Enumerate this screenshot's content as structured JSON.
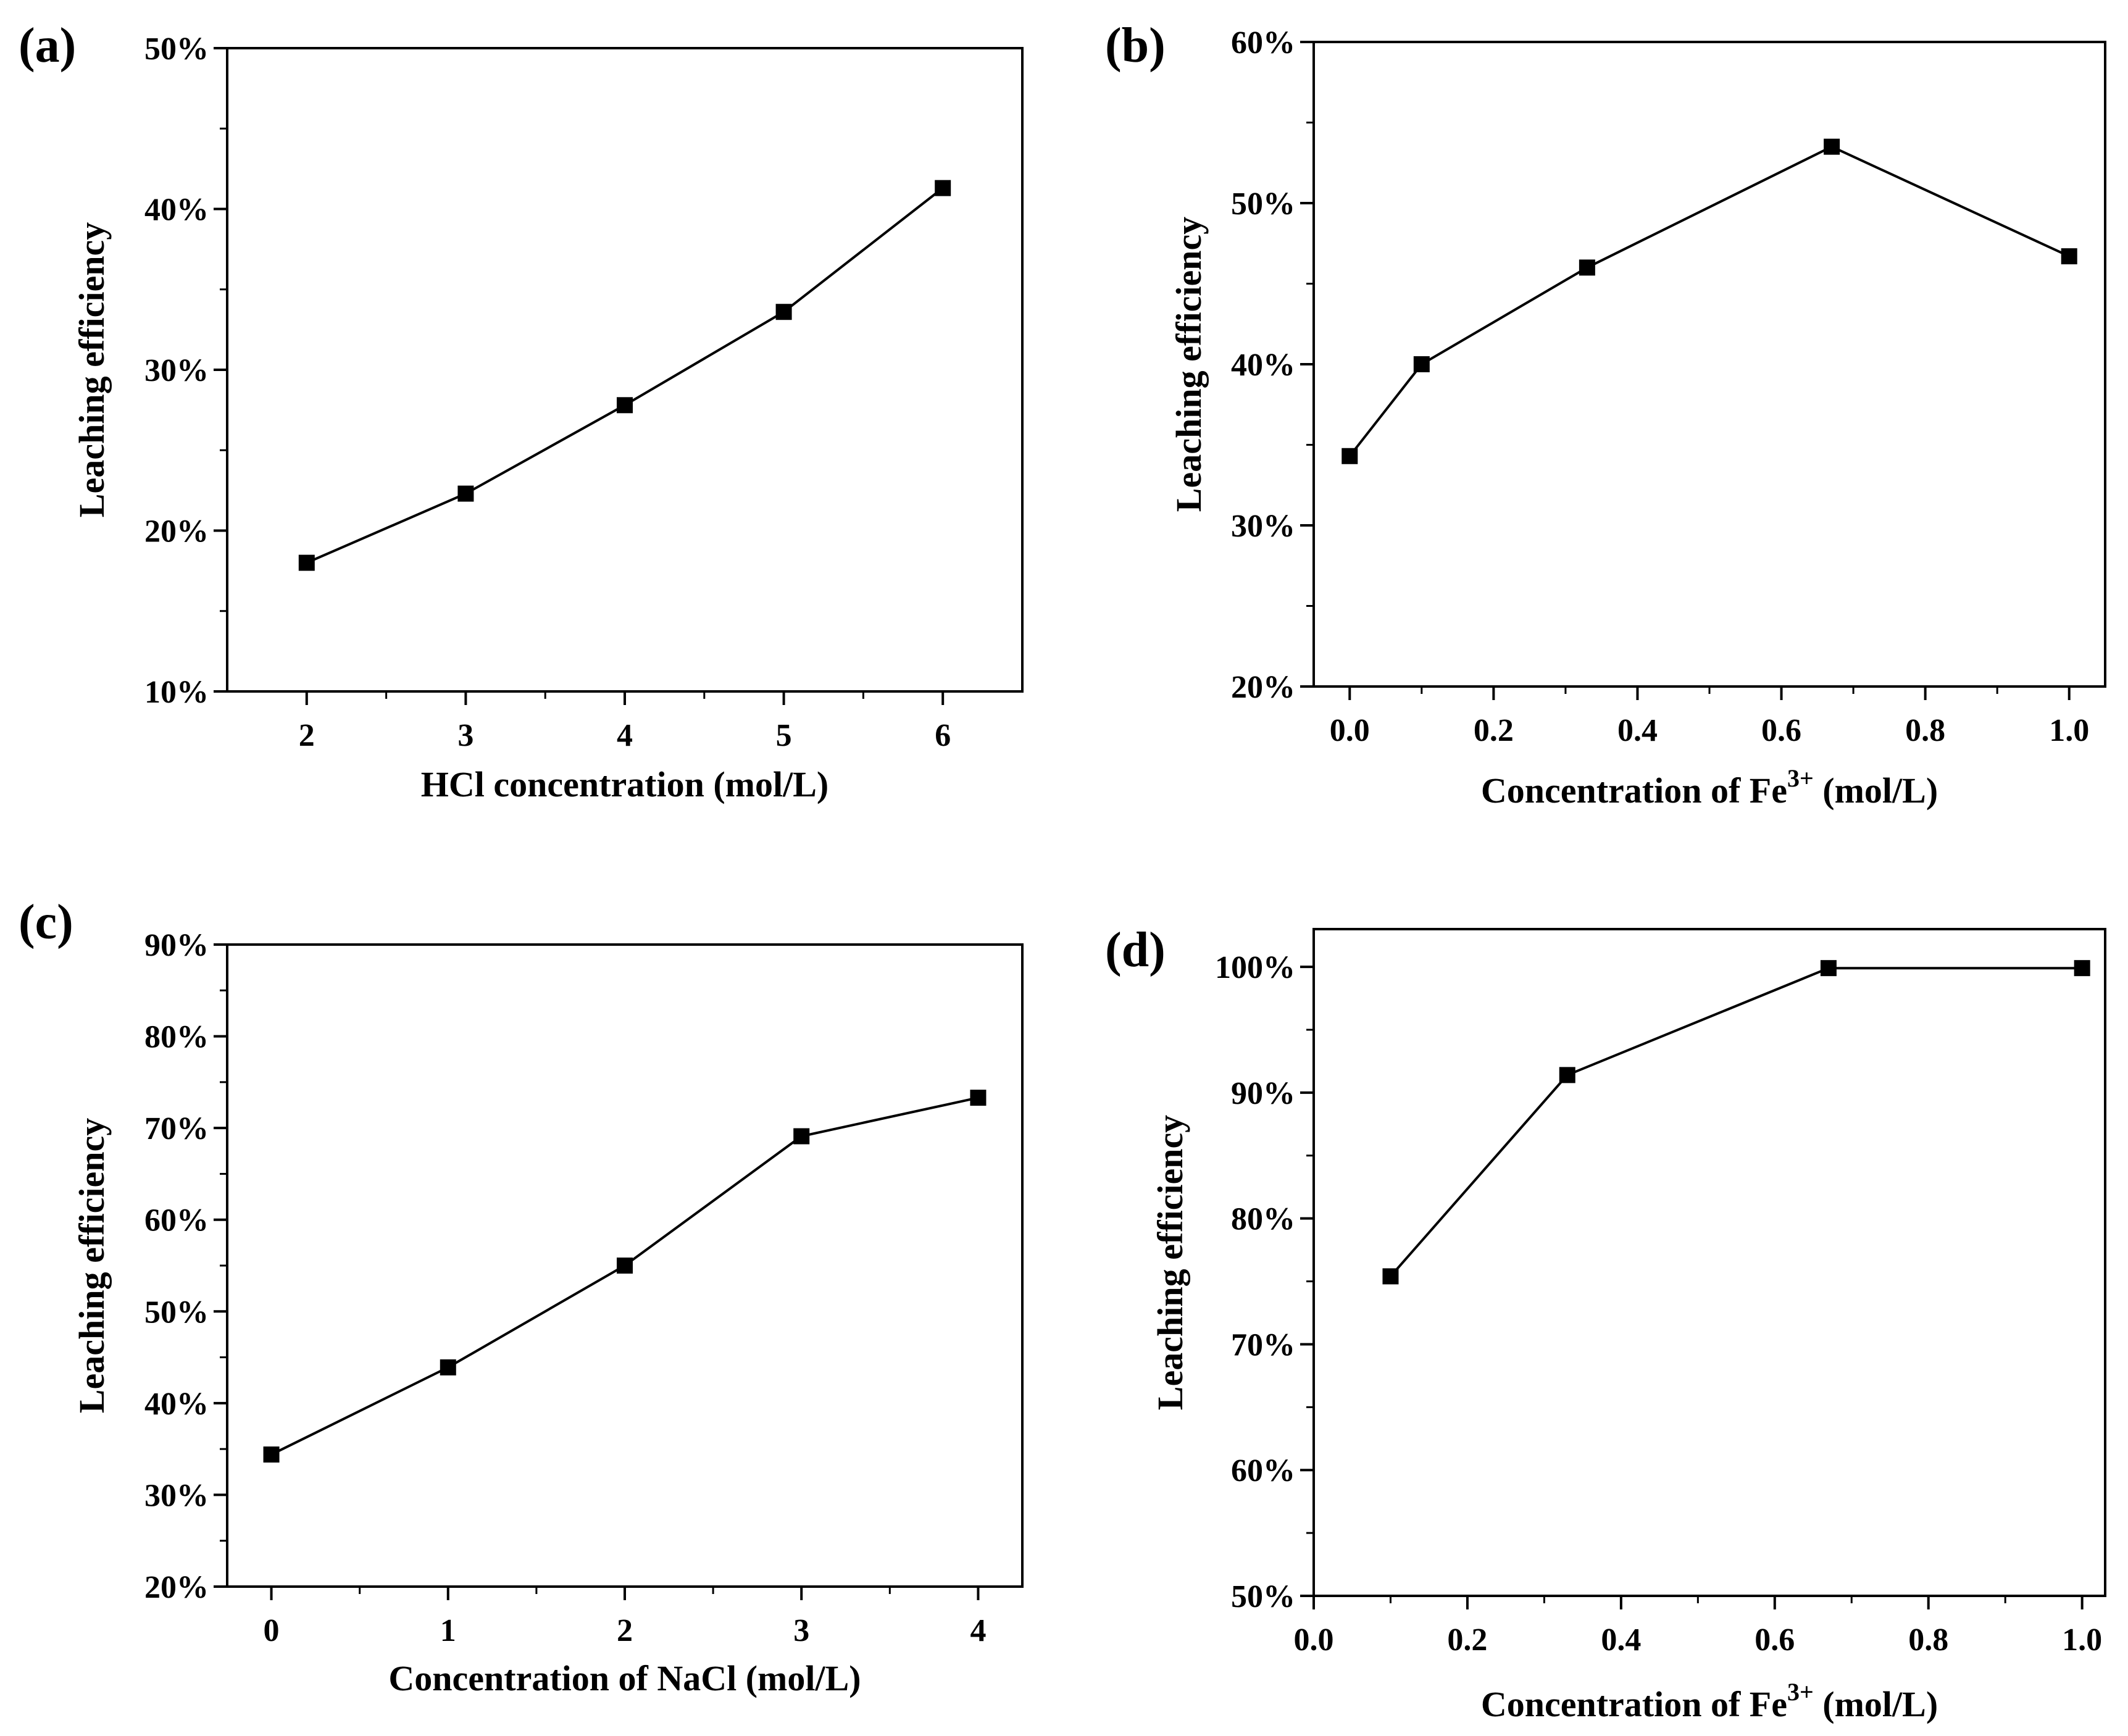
{
  "chart_data": [
    {
      "type": "line",
      "panel_label": "(a)",
      "title": "",
      "xlabel": "HCl concentration (mol/L)",
      "ylabel": "Leaching efficiency",
      "xlim": [
        1.5,
        6.5
      ],
      "ylim": [
        10,
        50
      ],
      "x_ticks": [
        2,
        3,
        4,
        5,
        6
      ],
      "x_tick_labels": [
        "2",
        "3",
        "4",
        "5",
        "6"
      ],
      "y_ticks": [
        10,
        20,
        30,
        40,
        50
      ],
      "y_tick_labels": [
        "10%",
        "20%",
        "30%",
        "40%",
        "50%"
      ],
      "series": [
        {
          "name": "Leaching efficiency",
          "x": [
            2,
            3,
            4,
            5,
            6
          ],
          "values": [
            18.0,
            22.3,
            27.8,
            33.6,
            41.3
          ]
        }
      ],
      "color": "#000000"
    },
    {
      "type": "line",
      "panel_label": "(b)",
      "title": "",
      "xlabel": "Concentration of Fe",
      "xlabel_sup": "3+",
      "xlabel_suffix": " (mol/L)",
      "ylabel": "Leaching efficiency",
      "xlim": [
        -0.05,
        1.05
      ],
      "ylim": [
        20,
        60
      ],
      "x_ticks": [
        0.0,
        0.2,
        0.4,
        0.6,
        0.8,
        1.0
      ],
      "x_tick_labels": [
        "0.0",
        "0.2",
        "0.4",
        "0.6",
        "0.8",
        "1.0"
      ],
      "y_ticks": [
        20,
        30,
        40,
        50,
        60
      ],
      "y_tick_labels": [
        "20%",
        "30%",
        "40%",
        "50%",
        "60%"
      ],
      "series": [
        {
          "name": "Leaching efficiency",
          "x": [
            0.0,
            0.1,
            0.33,
            0.67,
            1.0
          ],
          "values": [
            34.3,
            40.0,
            46.0,
            53.5,
            46.7
          ]
        }
      ],
      "color": "#000000"
    },
    {
      "type": "line",
      "panel_label": "(c)",
      "title": "",
      "xlabel": "Concentration of NaCl (mol/L)",
      "ylabel": "Leaching efficiency",
      "xlim": [
        -0.25,
        4.25
      ],
      "ylim": [
        20,
        90
      ],
      "x_ticks": [
        0,
        1,
        2,
        3,
        4
      ],
      "x_tick_labels": [
        "0",
        "1",
        "2",
        "3",
        "4"
      ],
      "y_ticks": [
        20,
        30,
        40,
        50,
        60,
        70,
        80,
        90
      ],
      "y_tick_labels": [
        "20%",
        "30%",
        "40%",
        "50%",
        "60%",
        "70%",
        "80%",
        "90%"
      ],
      "series": [
        {
          "name": "Leaching efficiency",
          "x": [
            0,
            1,
            2,
            3,
            4
          ],
          "values": [
            34.4,
            43.9,
            55.0,
            69.1,
            73.3
          ]
        }
      ],
      "color": "#000000"
    },
    {
      "type": "line",
      "panel_label": "(d)",
      "title": "",
      "xlabel": "Concentration of Fe",
      "xlabel_sup": "3+",
      "xlabel_suffix": " (mol/L)",
      "ylabel": "Leaching efficiency",
      "xlim": [
        0.0,
        1.03
      ],
      "ylim": [
        50,
        103
      ],
      "x_ticks": [
        0.0,
        0.2,
        0.4,
        0.6,
        0.8,
        1.0
      ],
      "x_tick_labels": [
        "0.0",
        "0.2",
        "0.4",
        "0.6",
        "0.8",
        "1.0"
      ],
      "y_ticks": [
        50,
        60,
        70,
        80,
        90,
        100
      ],
      "y_tick_labels": [
        "50%",
        "60%",
        "70%",
        "80%",
        "90%",
        "100%"
      ],
      "series": [
        {
          "name": "Leaching efficiency",
          "x": [
            0.1,
            0.33,
            0.67,
            1.0
          ],
          "values": [
            75.4,
            91.4,
            99.9,
            99.9
          ]
        }
      ],
      "color": "#000000"
    }
  ]
}
